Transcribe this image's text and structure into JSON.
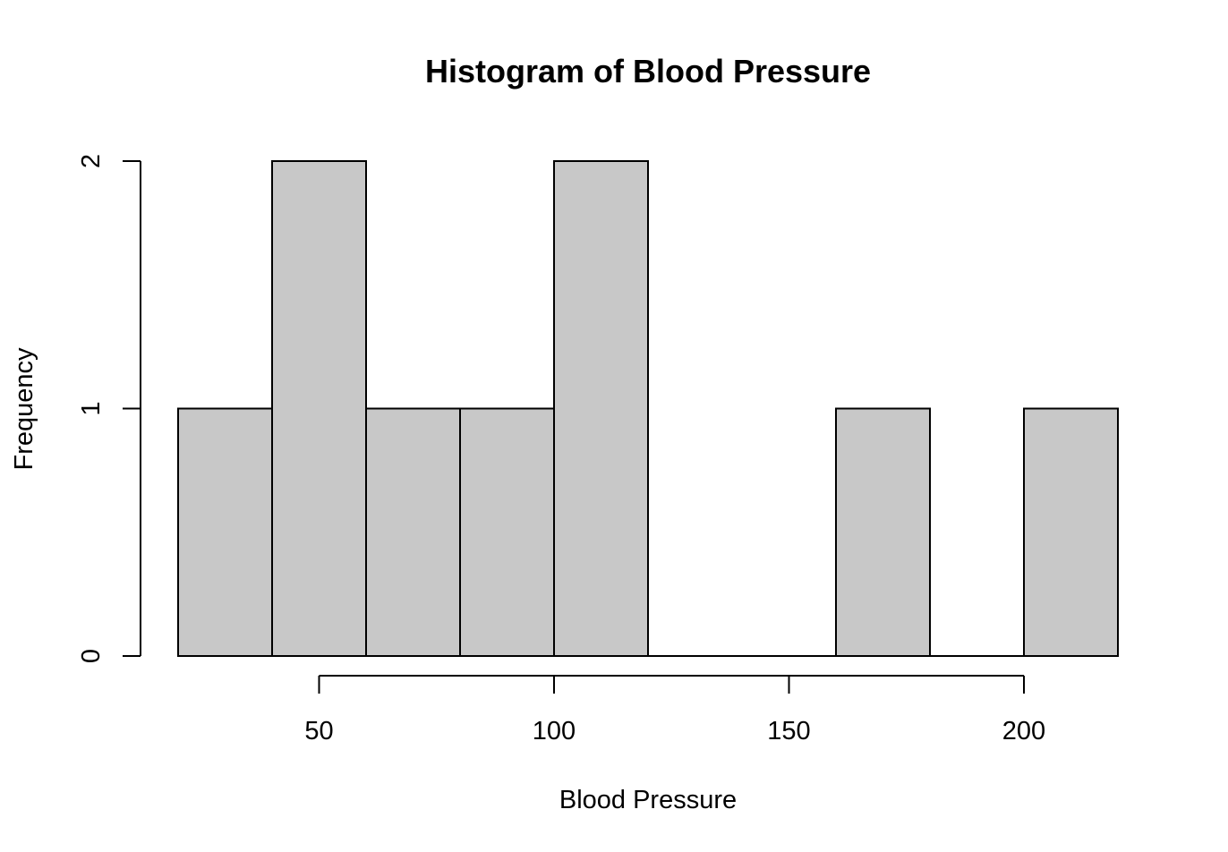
{
  "chart_data": {
    "type": "histogram",
    "title": "Histogram of Blood Pressure",
    "xlabel": "Blood Pressure",
    "ylabel": "Frequency",
    "bins": [
      {
        "start": 20,
        "end": 40,
        "count": 1
      },
      {
        "start": 40,
        "end": 60,
        "count": 2
      },
      {
        "start": 60,
        "end": 80,
        "count": 1
      },
      {
        "start": 80,
        "end": 100,
        "count": 1
      },
      {
        "start": 100,
        "end": 120,
        "count": 2
      },
      {
        "start": 120,
        "end": 140,
        "count": 0
      },
      {
        "start": 140,
        "end": 160,
        "count": 0
      },
      {
        "start": 160,
        "end": 180,
        "count": 1
      },
      {
        "start": 180,
        "end": 200,
        "count": 0
      },
      {
        "start": 200,
        "end": 220,
        "count": 1
      }
    ],
    "xlim": [
      20,
      220
    ],
    "ylim": [
      0,
      2
    ],
    "x_ticks": [
      50,
      100,
      150,
      200
    ],
    "x_tick_labels": [
      "50",
      "100",
      "150",
      "200"
    ],
    "y_ticks": [
      0,
      1,
      2
    ],
    "y_tick_labels": [
      "0",
      "1",
      "2"
    ],
    "bar_color": "#c8c8c8",
    "border_color": "#000000",
    "grid": false
  }
}
